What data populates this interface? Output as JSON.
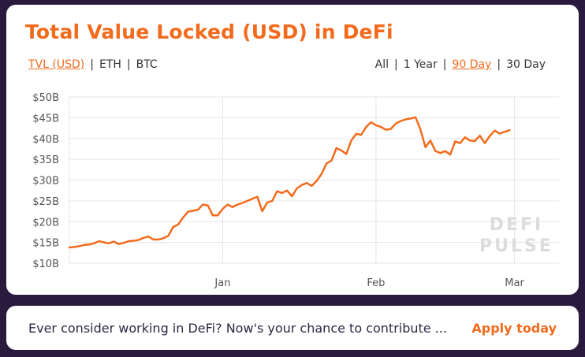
{
  "card": {
    "title": "Total Value Locked (USD) in DeFi",
    "currency_options": [
      "TVL (USD)",
      "ETH",
      "BTC"
    ],
    "currency_active": 0,
    "range_options": [
      "All",
      "1 Year",
      "90 Day",
      "30 Day"
    ],
    "range_active": 2,
    "watermark_lines": [
      "DEFI",
      "PULSE"
    ]
  },
  "banner": {
    "text": "Ever consider working in DeFi? Now's your chance to contribute ...",
    "link": "Apply today"
  },
  "colors": {
    "accent": "#f26b1d",
    "background": "#2a1a3e",
    "grid": "#e6e6e6",
    "watermark": "#dcdcdc"
  },
  "chart_data": {
    "type": "line",
    "title": "",
    "xlabel": "",
    "ylabel": "",
    "yticks": [
      "$50B",
      "$45B",
      "$40B",
      "$35B",
      "$30B",
      "$25B",
      "$20B",
      "$15B",
      "$10B"
    ],
    "ylim": [
      10,
      50
    ],
    "xticks": [
      {
        "label": "Jan",
        "x": 22
      },
      {
        "label": "Feb",
        "x": 53
      },
      {
        "label": "Mar",
        "x": 81
      }
    ],
    "xlim": [
      -9,
      90
    ],
    "grid": true,
    "series": [
      {
        "values": [
          [
            -9,
            13.8
          ],
          [
            -8,
            13.9
          ],
          [
            -7,
            14.1
          ],
          [
            -6,
            14.4
          ],
          [
            -5,
            14.5
          ],
          [
            -4,
            14.8
          ],
          [
            -3,
            15.3
          ],
          [
            -2,
            15.0
          ],
          [
            -1,
            14.8
          ],
          [
            0,
            15.2
          ],
          [
            1,
            14.6
          ],
          [
            2,
            14.9
          ],
          [
            3,
            15.3
          ],
          [
            4,
            15.4
          ],
          [
            5,
            15.6
          ],
          [
            6,
            16.1
          ],
          [
            7,
            16.4
          ],
          [
            8,
            15.7
          ],
          [
            9,
            15.7
          ],
          [
            10,
            16.0
          ],
          [
            11,
            16.6
          ],
          [
            12,
            18.7
          ],
          [
            13,
            19.3
          ],
          [
            14,
            21.0
          ],
          [
            15,
            22.4
          ],
          [
            16,
            22.6
          ],
          [
            17,
            22.9
          ],
          [
            18,
            24.1
          ],
          [
            19,
            23.9
          ],
          [
            20,
            21.5
          ],
          [
            21,
            21.5
          ],
          [
            22,
            23.1
          ],
          [
            23,
            24.1
          ],
          [
            24,
            23.5
          ],
          [
            25,
            24.1
          ],
          [
            26,
            24.5
          ],
          [
            27,
            25.0
          ],
          [
            28,
            25.5
          ],
          [
            29,
            26.0
          ],
          [
            30,
            22.5
          ],
          [
            31,
            24.6
          ],
          [
            32,
            25.0
          ],
          [
            33,
            27.3
          ],
          [
            34,
            26.9
          ],
          [
            35,
            27.5
          ],
          [
            36,
            26.1
          ],
          [
            37,
            28.0
          ],
          [
            38,
            28.8
          ],
          [
            39,
            29.3
          ],
          [
            40,
            28.6
          ],
          [
            41,
            29.8
          ],
          [
            42,
            31.5
          ],
          [
            43,
            34.0
          ],
          [
            44,
            34.7
          ],
          [
            45,
            37.7
          ],
          [
            46,
            37.1
          ],
          [
            47,
            36.3
          ],
          [
            48,
            39.5
          ],
          [
            49,
            41.1
          ],
          [
            50,
            40.9
          ],
          [
            51,
            42.8
          ],
          [
            52,
            43.9
          ],
          [
            53,
            43.2
          ],
          [
            54,
            42.8
          ],
          [
            55,
            42.1
          ],
          [
            56,
            42.3
          ],
          [
            57,
            43.6
          ],
          [
            58,
            44.2
          ],
          [
            59,
            44.6
          ],
          [
            60,
            44.8
          ],
          [
            61,
            45.1
          ],
          [
            62,
            42.1
          ],
          [
            63,
            37.9
          ],
          [
            64,
            39.5
          ],
          [
            65,
            37.0
          ],
          [
            66,
            36.5
          ],
          [
            67,
            37.0
          ],
          [
            68,
            36.1
          ],
          [
            69,
            39.3
          ],
          [
            70,
            38.9
          ],
          [
            71,
            40.3
          ],
          [
            72,
            39.5
          ],
          [
            73,
            39.4
          ],
          [
            74,
            40.7
          ],
          [
            75,
            38.9
          ],
          [
            76,
            40.6
          ],
          [
            77,
            41.9
          ],
          [
            78,
            41.2
          ],
          [
            79,
            41.6
          ],
          [
            80,
            42.0
          ]
        ]
      }
    ]
  }
}
